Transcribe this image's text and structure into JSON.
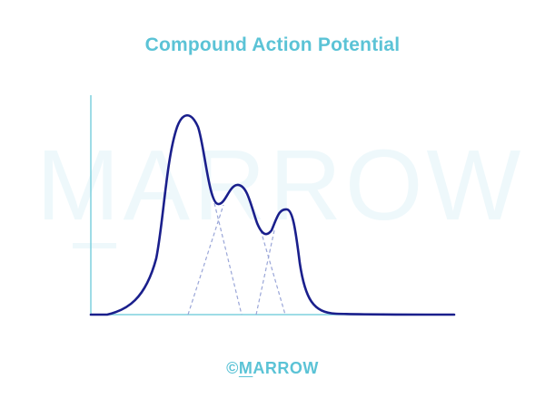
{
  "title": "Compound Action Potential",
  "watermark": {
    "text": "MARROW"
  },
  "footer": {
    "copyright_symbol": "©",
    "brand_first_letter": "M",
    "brand_rest": "ARROW"
  },
  "colors": {
    "title": "#5bc3d6",
    "axis": "#7fd0de",
    "curve": "#1a1f8c",
    "component_dash": "#9aa6d8",
    "watermark": "#eef8fb"
  },
  "icons": {
    "logo": "marrow-logo"
  }
}
